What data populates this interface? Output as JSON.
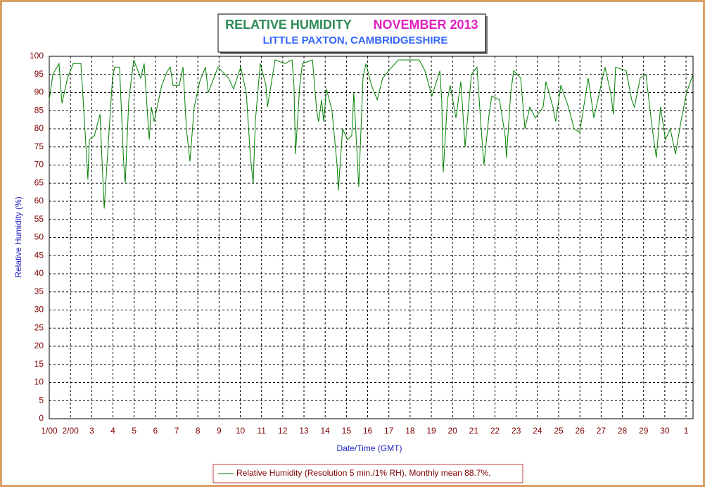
{
  "chart_data": {
    "type": "line",
    "title": "RELATIVE HUMIDITY",
    "period": "NOVEMBER 2013",
    "subtitle": "LITTLE PAXTON, CAMBRIDGESHIRE",
    "x_label": "Date/Time (GMT)",
    "y_label": "Relative Humidity (%)",
    "grid": true,
    "xlim": [
      1,
      31.33
    ],
    "ylim": [
      0,
      100
    ],
    "xticks": [
      {
        "value": 1,
        "label": "1/00"
      },
      {
        "value": 2,
        "label": "2/00"
      },
      3,
      4,
      5,
      6,
      7,
      8,
      9,
      10,
      11,
      12,
      13,
      14,
      15,
      16,
      17,
      18,
      19,
      20,
      21,
      22,
      23,
      24,
      25,
      26,
      27,
      28,
      29,
      30,
      {
        "value": 31,
        "label": "1"
      }
    ],
    "yticks": [
      0,
      5,
      10,
      15,
      20,
      25,
      30,
      35,
      40,
      45,
      50,
      55,
      60,
      65,
      70,
      75,
      80,
      85,
      90,
      95,
      100
    ],
    "series": [
      {
        "name": "Relative Humidity (Resolution 5 min./1% RH). Monthly mean 88.7%.",
        "color": "#008000",
        "x": [
          1.0,
          1.17,
          1.46,
          1.6,
          1.86,
          2.13,
          2.49,
          2.66,
          2.82,
          2.89,
          3.12,
          3.39,
          3.59,
          3.78,
          3.98,
          4.08,
          4.31,
          4.51,
          4.58,
          4.75,
          4.98,
          5.31,
          5.47,
          5.71,
          5.81,
          5.94,
          6.3,
          6.57,
          6.7,
          6.83,
          7.13,
          7.3,
          7.46,
          7.63,
          7.83,
          8.09,
          8.36,
          8.49,
          8.95,
          9.45,
          9.68,
          10.02,
          10.28,
          10.48,
          10.61,
          10.71,
          10.94,
          11.21,
          11.28,
          11.64,
          12.1,
          12.44,
          12.53,
          12.6,
          12.8,
          12.93,
          13.4,
          13.6,
          13.69,
          13.83,
          13.93,
          14.06,
          14.32,
          14.56,
          14.62,
          14.82,
          15.05,
          15.25,
          15.35,
          15.58,
          15.78,
          15.92,
          16.18,
          16.45,
          16.71,
          17.14,
          17.44,
          18.43,
          18.7,
          19.03,
          19.4,
          19.49,
          19.56,
          19.76,
          19.89,
          20.16,
          20.39,
          20.59,
          20.89,
          21.15,
          21.35,
          21.48,
          21.72,
          21.85,
          22.21,
          22.48,
          22.54,
          22.74,
          22.88,
          23.21,
          23.41,
          23.64,
          23.9,
          24.27,
          24.4,
          24.73,
          24.86,
          25.1,
          25.46,
          25.73,
          25.99,
          26.39,
          26.66,
          27.18,
          27.45,
          27.58,
          27.68,
          28.18,
          28.44,
          28.57,
          28.84,
          29.11,
          29.41,
          29.6,
          29.8,
          30.03,
          30.26,
          30.5,
          30.76,
          31.03,
          31.33
        ],
        "values": [
          88,
          95,
          98,
          87,
          94,
          98,
          98,
          82,
          66,
          77,
          78,
          84,
          58,
          76,
          94,
          97,
          97,
          70,
          65,
          88,
          99,
          94,
          98,
          77,
          86,
          82,
          92,
          96,
          97,
          92,
          92,
          97,
          80,
          71,
          86,
          93,
          97,
          90,
          97,
          94,
          91,
          97,
          90,
          72,
          65,
          82,
          98,
          92,
          86,
          99,
          98,
          99,
          92,
          73,
          92,
          98,
          99,
          85,
          82,
          88,
          82,
          91,
          85,
          70,
          63,
          80,
          77,
          78,
          90,
          64,
          94,
          98,
          92,
          88,
          94,
          97,
          99,
          99,
          96,
          89,
          96,
          88,
          68,
          88,
          92,
          83,
          93,
          75,
          95,
          97,
          80,
          70,
          84,
          89,
          88,
          78,
          72,
          90,
          96,
          94,
          80,
          86,
          83,
          86,
          93,
          86,
          82,
          92,
          86,
          80,
          79,
          94,
          83,
          97,
          90,
          84,
          97,
          96,
          88,
          86,
          94,
          95,
          80,
          72,
          86,
          77,
          80,
          73,
          82,
          90,
          95
        ]
      }
    ]
  }
}
